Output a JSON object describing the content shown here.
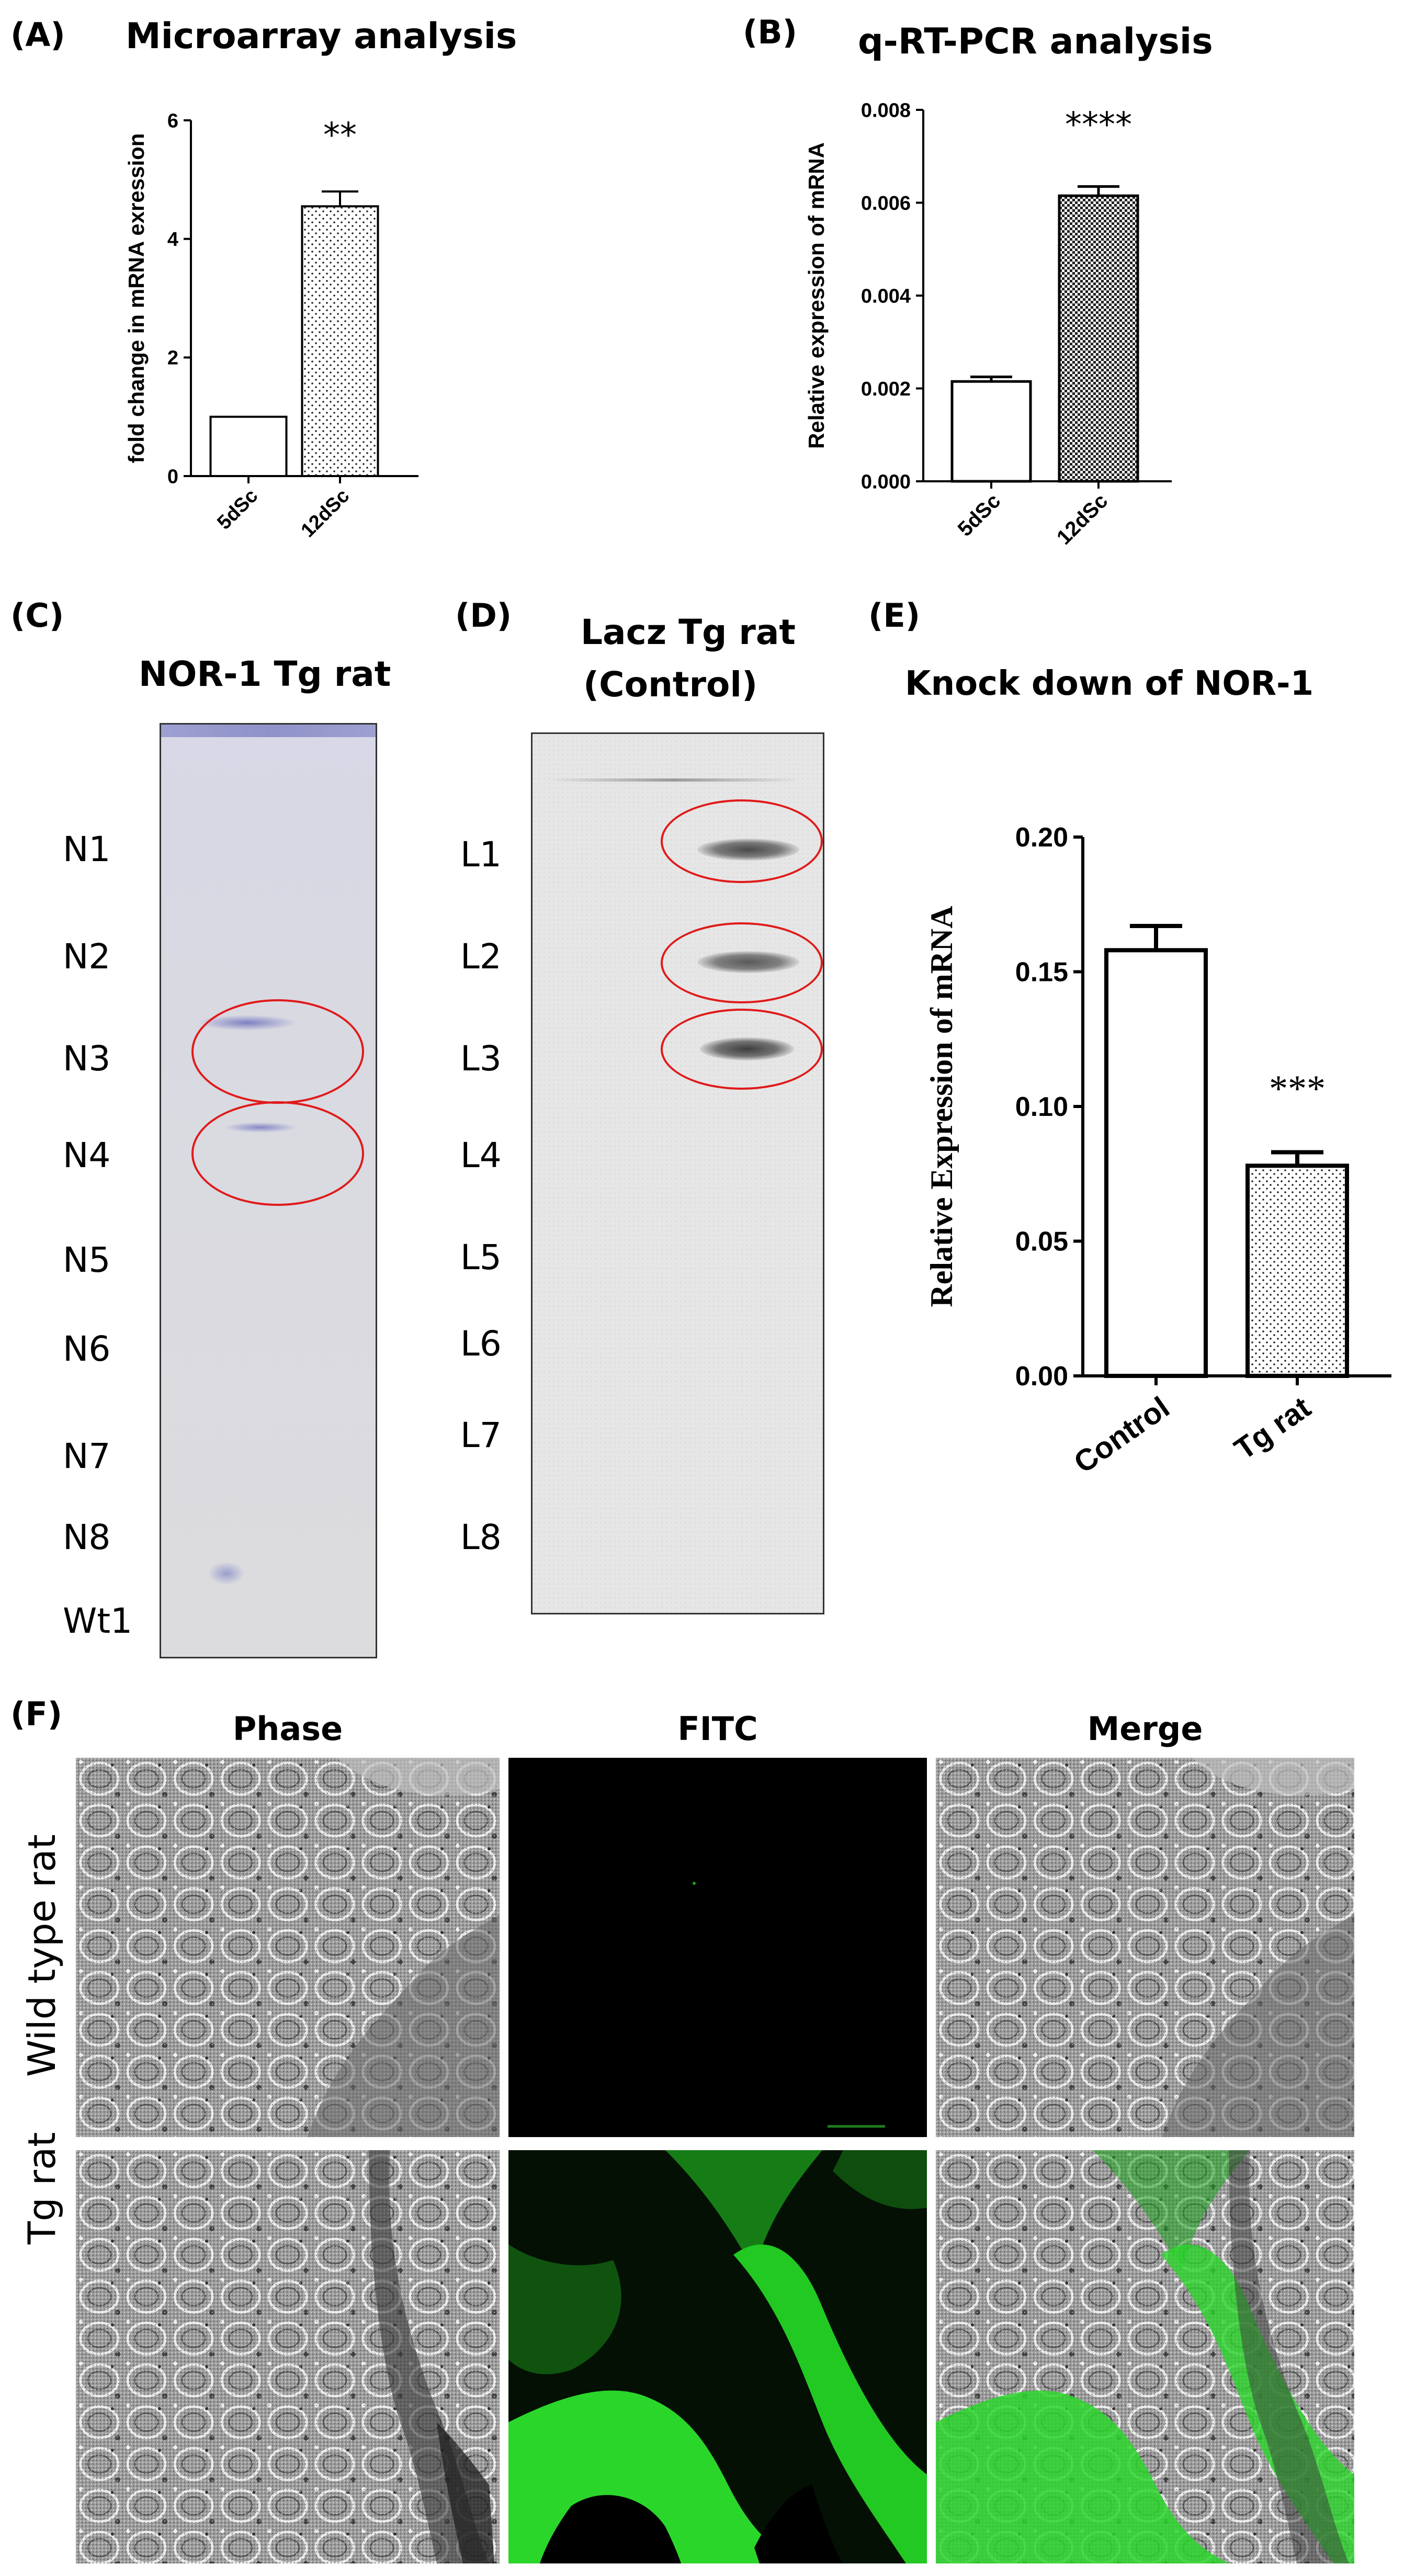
{
  "panels": {
    "A": {
      "letter": "(A)",
      "title": "Microarray analysis"
    },
    "B": {
      "letter": "(B)",
      "title": "q-RT-PCR analysis"
    },
    "C": {
      "letter": "(C)",
      "title": "NOR-1 Tg rat",
      "lanes": [
        "N1",
        "N2",
        "N3",
        "N4",
        "N5",
        "N6",
        "N7",
        "N8",
        "Wt1"
      ]
    },
    "D": {
      "letter": "(D)",
      "title_line1": "Lacz Tg rat",
      "title_line2": "(Control)",
      "lanes": [
        "L1",
        "L2",
        "L3",
        "L4",
        "L5",
        "L6",
        "L7",
        "L8"
      ]
    },
    "E": {
      "letter": "(E)",
      "title": "Knock down of NOR-1"
    },
    "F": {
      "letter": "(F)",
      "columns": [
        "Phase",
        "FITC",
        "Merge"
      ],
      "rows": [
        "Wild type rat",
        "Tg rat"
      ]
    }
  },
  "chart_data": [
    {
      "id": "A",
      "type": "bar",
      "title": "Microarray analysis",
      "ylabel": "fold change in mRNA exression",
      "xlabel": "",
      "categories": [
        "5dSc",
        "12dSc"
      ],
      "values": [
        1.0,
        4.55
      ],
      "errors": [
        0,
        0.25
      ],
      "ylim": [
        0,
        6
      ],
      "yticks": [
        "0",
        "2",
        "4",
        "6"
      ],
      "annotations": [
        "",
        "**"
      ],
      "patterns": [
        "none",
        "dots"
      ]
    },
    {
      "id": "B",
      "type": "bar",
      "title": "q-RT-PCR analysis",
      "ylabel": "Relative expression of mRNA",
      "xlabel": "",
      "categories": [
        "5dSc",
        "12dSc"
      ],
      "values": [
        0.00215,
        0.00615
      ],
      "errors": [
        0.0001,
        0.0002
      ],
      "ylim": [
        0,
        0.008
      ],
      "yticks": [
        "0.000",
        "0.002",
        "0.004",
        "0.006",
        "0.008"
      ],
      "annotations": [
        "",
        "****"
      ],
      "patterns": [
        "none",
        "checker"
      ]
    },
    {
      "id": "E",
      "type": "bar",
      "title": "Knock down of NOR-1",
      "ylabel": "Relative Expression of mRNA",
      "xlabel": "",
      "categories": [
        "Control",
        "Tg rat"
      ],
      "values": [
        0.158,
        0.078
      ],
      "errors": [
        0.009,
        0.005
      ],
      "ylim": [
        0,
        0.2
      ],
      "yticks": [
        "0.00",
        "0.05",
        "0.10",
        "0.15",
        "0.20"
      ],
      "annotations": [
        "",
        "***"
      ],
      "patterns": [
        "none",
        "dots"
      ]
    }
  ]
}
